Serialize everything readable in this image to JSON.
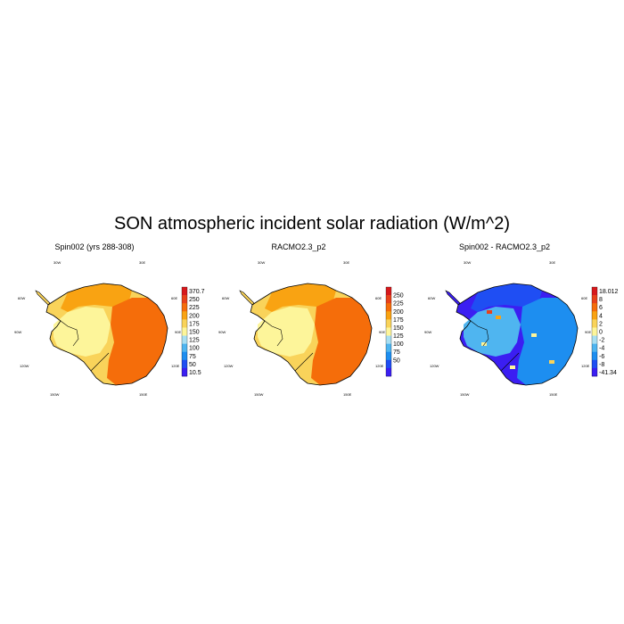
{
  "title": "SON atmospheric incident solar radiation (W/m^2)",
  "lon_labels": [
    "30W",
    "30E",
    "60W",
    "60E",
    "90W",
    "90E",
    "120W",
    "120E",
    "150W",
    "150E",
    "180"
  ],
  "panels": [
    {
      "title": "Spin002 (yrs 288-308)",
      "colorbar": {
        "labels": [
          "370.7",
          "250",
          "225",
          "200",
          "175",
          "150",
          "125",
          "100",
          "75",
          "50",
          "10.5"
        ],
        "colors": [
          "#d7191c",
          "#e8421a",
          "#f56d0a",
          "#f9a312",
          "#f9d35a",
          "#fdf59a",
          "#a8dff2",
          "#4fb5f0",
          "#1d8ef0",
          "#1f4ef3",
          "#3b1ef2"
        ]
      },
      "map_colors": {
        "interior": "#fdf59a",
        "west_band": "#f9a312",
        "east": "#f56d0a",
        "coast": "#f9d35a"
      }
    },
    {
      "title": "RACMO2.3_p2",
      "colorbar": {
        "labels": [
          "250",
          "225",
          "200",
          "175",
          "150",
          "125",
          "100",
          "75",
          "50"
        ],
        "colors": [
          "#d7191c",
          "#e8421a",
          "#f56d0a",
          "#f9a312",
          "#f9d35a",
          "#fdf59a",
          "#a8dff2",
          "#4fb5f0",
          "#1d8ef0",
          "#1f4ef3",
          "#3b1ef2"
        ]
      },
      "map_colors": {
        "interior": "#fdf59a",
        "west_band": "#f9a312",
        "east": "#f56d0a",
        "coast": "#f9d35a"
      }
    },
    {
      "title": "Spin002 - RACMO2.3_p2",
      "colorbar": {
        "labels": [
          "18.012",
          "8",
          "6",
          "4",
          "2",
          "0",
          "-2",
          "-4",
          "-6",
          "-8",
          "-41.34"
        ],
        "colors": [
          "#d7191c",
          "#e8421a",
          "#f56d0a",
          "#f9a312",
          "#f9d35a",
          "#fdf59a",
          "#a8dff2",
          "#4fb5f0",
          "#1d8ef0",
          "#1f4ef3",
          "#3b1ef2"
        ]
      },
      "map_colors": {
        "interior": "#4fb5f0",
        "west_band": "#1f4ef3",
        "east": "#1d8ef0",
        "coast": "#3b1ef2"
      }
    }
  ]
}
